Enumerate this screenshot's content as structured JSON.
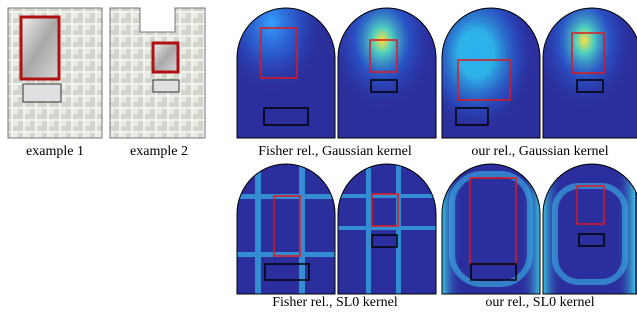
{
  "figure": {
    "captions": {
      "example_1": "example 1",
      "example_2": "example 2",
      "fisher_gaussian": "Fisher rel., Gaussian kernel",
      "our_gaussian": "our rel., Gaussian kernel",
      "fisher_sl0": "Fisher rel., SL0 kernel",
      "our_sl0": "our rel., SL0 kernel"
    }
  }
}
